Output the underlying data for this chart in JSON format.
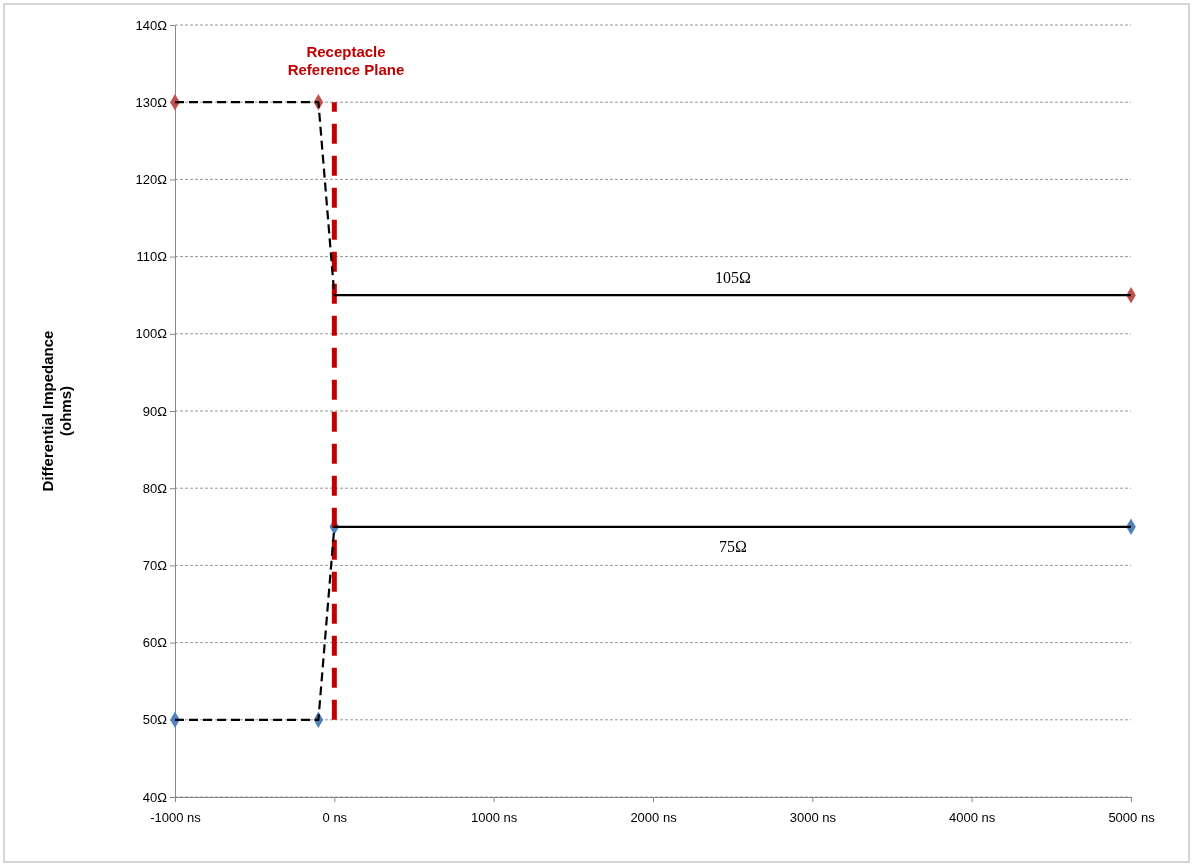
{
  "chart_data": {
    "type": "line",
    "ylabel": "Differential Impedance (ohms)",
    "xlim": [
      -1000,
      5000
    ],
    "ylim": [
      40,
      140
    ],
    "xticks": [
      {
        "value": -1000,
        "label": "-1000 ns"
      },
      {
        "value": 0,
        "label": "0 ns"
      },
      {
        "value": 1000,
        "label": "1000 ns"
      },
      {
        "value": 2000,
        "label": "2000 ns"
      },
      {
        "value": 3000,
        "label": "3000 ns"
      },
      {
        "value": 4000,
        "label": "4000 ns"
      },
      {
        "value": 5000,
        "label": "5000 ns"
      }
    ],
    "yticks": [
      {
        "value": 40,
        "label": "40Ω"
      },
      {
        "value": 50,
        "label": "50Ω"
      },
      {
        "value": 60,
        "label": "60Ω"
      },
      {
        "value": 70,
        "label": "70Ω"
      },
      {
        "value": 80,
        "label": "80Ω"
      },
      {
        "value": 90,
        "label": "90Ω"
      },
      {
        "value": 100,
        "label": "100Ω"
      },
      {
        "value": 110,
        "label": "110Ω"
      },
      {
        "value": 120,
        "label": "120Ω"
      },
      {
        "value": 130,
        "label": "130Ω"
      },
      {
        "value": 140,
        "label": "140Ω"
      }
    ],
    "grid": "y",
    "series": [
      {
        "color": "#c00000",
        "line_style": "dashed",
        "marker": "none",
        "x": [
          0,
          0
        ],
        "values": [
          50,
          130
        ]
      },
      {
        "color": "#000000",
        "line_style": "dashed",
        "marker": "none",
        "x": [
          -1000,
          -100,
          0
        ],
        "values": [
          130,
          130,
          105
        ]
      },
      {
        "color": "#000000",
        "line_style": "solid",
        "marker": "none",
        "x": [
          0,
          5000
        ],
        "values": [
          105,
          105
        ]
      },
      {
        "color": "#000000",
        "line_style": "dashed",
        "marker": "none",
        "x": [
          -1000,
          -100,
          0
        ],
        "values": [
          50,
          50,
          75
        ]
      },
      {
        "color": "#000000",
        "line_style": "solid",
        "marker": "none",
        "x": [
          0,
          5000
        ],
        "values": [
          75,
          75
        ]
      },
      {
        "type": "scatter",
        "color": "#c0504d",
        "marker": "diamond",
        "x": [
          -1000,
          -100,
          5000
        ],
        "values": [
          130,
          130,
          105
        ]
      },
      {
        "type": "scatter",
        "color": "#4f81bd",
        "marker": "diamond",
        "x": [
          -1000,
          -100,
          0,
          5000
        ],
        "values": [
          50,
          50,
          75,
          75
        ]
      }
    ],
    "annotations": [
      "Receptacle Reference Plane",
      "105Ω",
      "75Ω"
    ]
  }
}
